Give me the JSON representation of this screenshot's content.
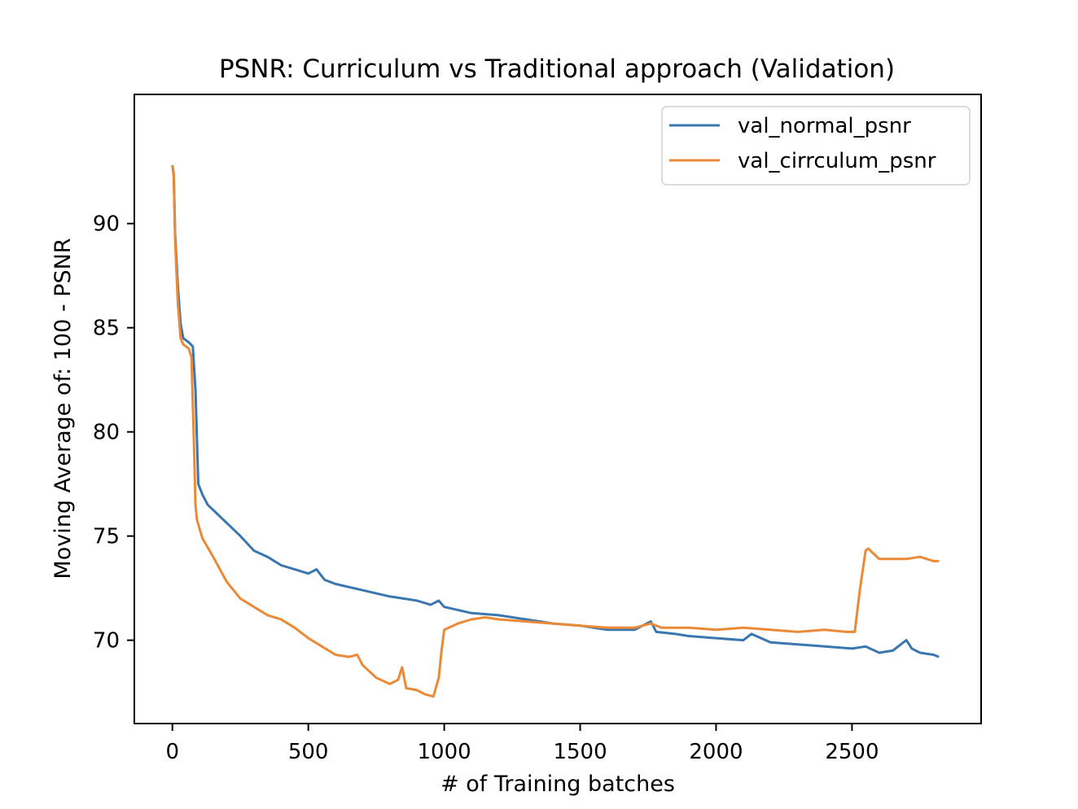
{
  "chart_data": {
    "type": "line",
    "title": "PSNR: Curriculum vs Traditional approach (Validation)",
    "xlabel": "# of Training batches",
    "ylabel": "Moving Average of: 100 - PSNR",
    "xlim": [
      -140,
      2975
    ],
    "ylim": [
      66.0,
      96.2
    ],
    "xticks": [
      0,
      500,
      1000,
      1500,
      2000,
      2500
    ],
    "yticks": [
      70,
      75,
      80,
      85,
      90
    ],
    "grid": false,
    "legend_position": "top-right",
    "series": [
      {
        "name": "val_normal_psnr",
        "color": "#3a77b1",
        "points": [
          [
            0,
            92.8
          ],
          [
            5,
            92.3
          ],
          [
            10,
            89.5
          ],
          [
            20,
            87.0
          ],
          [
            30,
            85.2
          ],
          [
            40,
            84.5
          ],
          [
            60,
            84.3
          ],
          [
            75,
            84.1
          ],
          [
            85,
            82.0
          ],
          [
            95,
            77.5
          ],
          [
            110,
            77.0
          ],
          [
            130,
            76.5
          ],
          [
            170,
            76.0
          ],
          [
            210,
            75.5
          ],
          [
            250,
            75.0
          ],
          [
            300,
            74.3
          ],
          [
            350,
            74.0
          ],
          [
            400,
            73.6
          ],
          [
            450,
            73.4
          ],
          [
            500,
            73.2
          ],
          [
            530,
            73.4
          ],
          [
            560,
            72.9
          ],
          [
            600,
            72.7
          ],
          [
            700,
            72.4
          ],
          [
            800,
            72.1
          ],
          [
            850,
            72.0
          ],
          [
            900,
            71.9
          ],
          [
            950,
            71.7
          ],
          [
            980,
            71.9
          ],
          [
            1000,
            71.6
          ],
          [
            1100,
            71.3
          ],
          [
            1200,
            71.2
          ],
          [
            1300,
            71.0
          ],
          [
            1400,
            70.8
          ],
          [
            1500,
            70.7
          ],
          [
            1600,
            70.5
          ],
          [
            1700,
            70.5
          ],
          [
            1760,
            70.9
          ],
          [
            1780,
            70.4
          ],
          [
            1850,
            70.3
          ],
          [
            1900,
            70.2
          ],
          [
            2000,
            70.1
          ],
          [
            2100,
            70.0
          ],
          [
            2130,
            70.3
          ],
          [
            2200,
            69.9
          ],
          [
            2300,
            69.8
          ],
          [
            2400,
            69.7
          ],
          [
            2500,
            69.6
          ],
          [
            2550,
            69.7
          ],
          [
            2600,
            69.4
          ],
          [
            2650,
            69.5
          ],
          [
            2680,
            69.8
          ],
          [
            2700,
            70.0
          ],
          [
            2720,
            69.6
          ],
          [
            2750,
            69.4
          ],
          [
            2800,
            69.3
          ],
          [
            2820,
            69.2
          ]
        ]
      },
      {
        "name": "val_cirrculum_psnr",
        "color": "#eb8a36",
        "points": [
          [
            0,
            92.8
          ],
          [
            5,
            92.4
          ],
          [
            10,
            89.2
          ],
          [
            20,
            86.2
          ],
          [
            30,
            84.5
          ],
          [
            40,
            84.2
          ],
          [
            60,
            84.0
          ],
          [
            70,
            83.6
          ],
          [
            78,
            80.0
          ],
          [
            85,
            76.5
          ],
          [
            90,
            75.8
          ],
          [
            110,
            74.9
          ],
          [
            150,
            74.0
          ],
          [
            200,
            72.8
          ],
          [
            250,
            72.0
          ],
          [
            300,
            71.6
          ],
          [
            350,
            71.2
          ],
          [
            400,
            71.0
          ],
          [
            450,
            70.6
          ],
          [
            500,
            70.1
          ],
          [
            550,
            69.7
          ],
          [
            600,
            69.3
          ],
          [
            650,
            69.2
          ],
          [
            680,
            69.3
          ],
          [
            700,
            68.8
          ],
          [
            750,
            68.2
          ],
          [
            800,
            67.9
          ],
          [
            830,
            68.1
          ],
          [
            845,
            68.7
          ],
          [
            860,
            67.7
          ],
          [
            900,
            67.6
          ],
          [
            930,
            67.4
          ],
          [
            960,
            67.3
          ],
          [
            980,
            68.2
          ],
          [
            990,
            69.5
          ],
          [
            1000,
            70.5
          ],
          [
            1050,
            70.8
          ],
          [
            1100,
            71.0
          ],
          [
            1150,
            71.1
          ],
          [
            1200,
            71.0
          ],
          [
            1300,
            70.9
          ],
          [
            1400,
            70.8
          ],
          [
            1500,
            70.7
          ],
          [
            1600,
            70.6
          ],
          [
            1700,
            70.6
          ],
          [
            1760,
            70.8
          ],
          [
            1800,
            70.6
          ],
          [
            1900,
            70.6
          ],
          [
            2000,
            70.5
          ],
          [
            2100,
            70.6
          ],
          [
            2200,
            70.5
          ],
          [
            2300,
            70.4
          ],
          [
            2400,
            70.5
          ],
          [
            2480,
            70.4
          ],
          [
            2510,
            70.4
          ],
          [
            2530,
            72.5
          ],
          [
            2550,
            74.3
          ],
          [
            2560,
            74.4
          ],
          [
            2600,
            73.9
          ],
          [
            2700,
            73.9
          ],
          [
            2750,
            74.0
          ],
          [
            2800,
            73.8
          ],
          [
            2820,
            73.8
          ]
        ]
      }
    ]
  }
}
